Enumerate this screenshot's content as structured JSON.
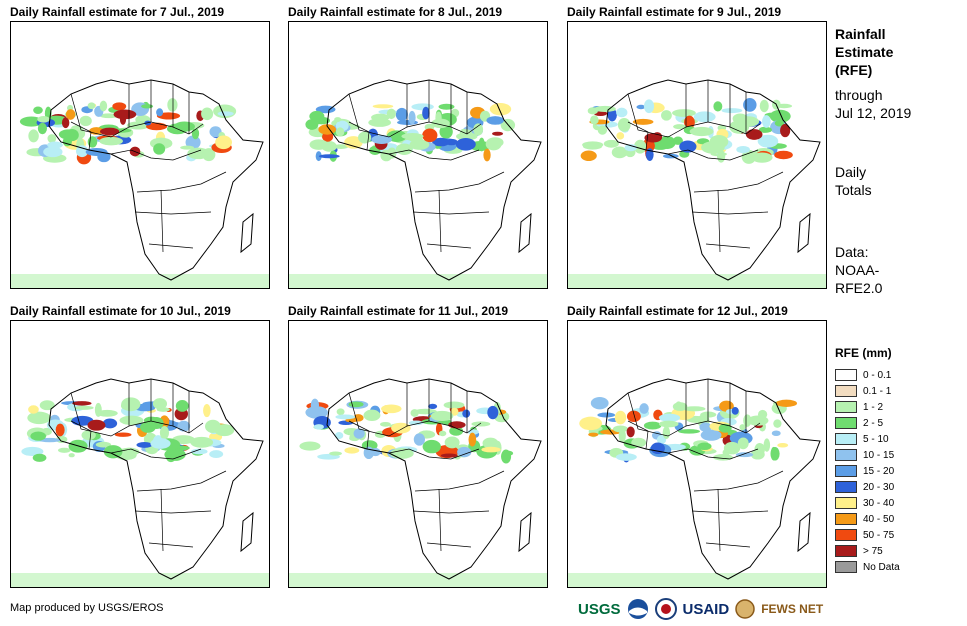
{
  "panels": [
    {
      "title": "Daily Rainfall estimate for 7 Jul., 2019"
    },
    {
      "title": "Daily Rainfall estimate for 8 Jul., 2019"
    },
    {
      "title": "Daily Rainfall estimate for 9 Jul., 2019"
    },
    {
      "title": "Daily Rainfall estimate for 10 Jul., 2019"
    },
    {
      "title": "Daily Rainfall estimate for 11 Jul., 2019"
    },
    {
      "title": "Daily Rainfall estimate for 12 Jul., 2019"
    }
  ],
  "sidebar": {
    "heading_line1": "Rainfall",
    "heading_line2": "Estimate",
    "heading_line3": "(RFE)",
    "through_label": "through",
    "through_date": "Jul 12, 2019",
    "totals_line1": "Daily",
    "totals_line2": "Totals",
    "data_line1": "Data:",
    "data_line2": "NOAA-",
    "data_line3": "RFE2.0"
  },
  "legend": {
    "title": "RFE (mm)",
    "items": [
      {
        "label": "0 - 0.1",
        "color": "#ffffff"
      },
      {
        "label": "0.1 - 1",
        "color": "#f2dcc0"
      },
      {
        "label": "1 - 2",
        "color": "#b6f2b0"
      },
      {
        "label": "2 - 5",
        "color": "#6fdc6f"
      },
      {
        "label": "5 - 10",
        "color": "#b8eef6"
      },
      {
        "label": "10 - 15",
        "color": "#8fc2ee"
      },
      {
        "label": "15 - 20",
        "color": "#5b9de6"
      },
      {
        "label": "20 - 30",
        "color": "#2e62d9"
      },
      {
        "label": "30 - 40",
        "color": "#fff08a"
      },
      {
        "label": "40 - 50",
        "color": "#f59a17"
      },
      {
        "label": "50 - 75",
        "color": "#f04a10"
      },
      {
        "label": "> 75",
        "color": "#a81b1b"
      },
      {
        "label": "No Data",
        "color": "#9a9a9a"
      }
    ]
  },
  "credit": "Map produced by USGS/EROS",
  "logos": {
    "usgs": "USGS",
    "usaid": "USAID",
    "fewsnet": "FEWS NET"
  }
}
